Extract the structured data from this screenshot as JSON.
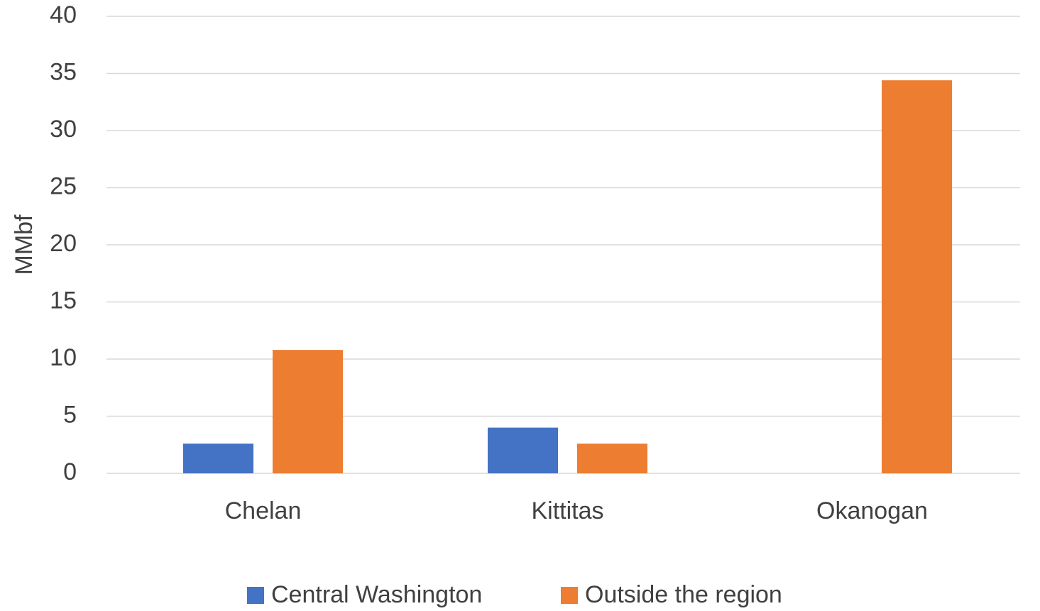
{
  "chart_data": {
    "type": "bar",
    "ylabel": "MMbf",
    "categories": [
      "Chelan",
      "Kittitas",
      "Okanogan"
    ],
    "series": [
      {
        "name": "Central Washington",
        "color": "#4472c4",
        "values": [
          2.6,
          4.0,
          0
        ]
      },
      {
        "name": "Outside the region",
        "color": "#ed7d31",
        "values": [
          10.8,
          2.6,
          34.4
        ]
      }
    ],
    "ylim": [
      0,
      40
    ],
    "yticks": [
      0,
      5,
      10,
      15,
      20,
      25,
      30,
      35,
      40
    ],
    "grid": true,
    "legend": "bottom"
  }
}
